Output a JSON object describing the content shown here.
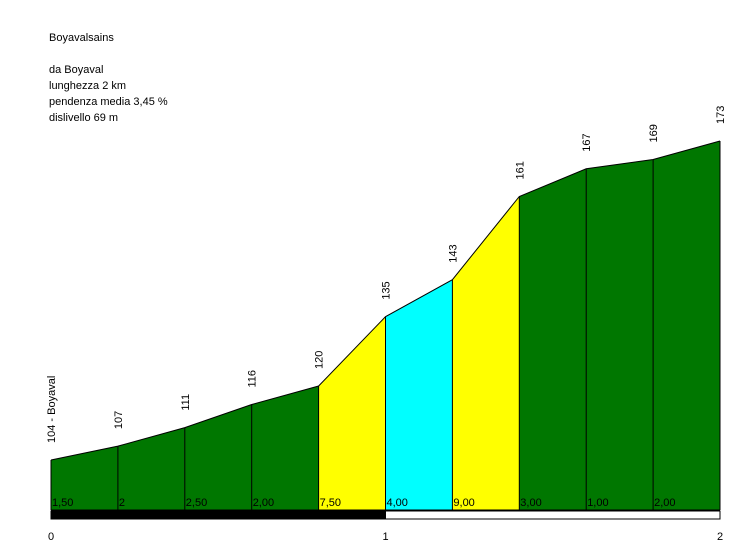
{
  "info": {
    "title": "Boyavalsains",
    "start": "da Boyaval",
    "length": "lunghezza 2 km",
    "gradient": "pendenza media 3,45 %",
    "elevation_gain": "dislivello 69 m"
  },
  "chart_data": {
    "type": "area",
    "title": "Boyavalsains",
    "xlabel": "",
    "ylabel": "",
    "x": [
      0,
      0.2,
      0.4,
      0.6,
      0.8,
      1.0,
      1.2,
      1.4,
      1.6,
      1.8,
      2.0
    ],
    "altitudes": [
      104,
      107,
      111,
      116,
      120,
      135,
      143,
      161,
      167,
      169,
      173
    ],
    "altitude_labels": [
      "104 - Boyaval",
      "107",
      "111",
      "116",
      "120",
      "135",
      "143",
      "161",
      "167",
      "169",
      "173"
    ],
    "segment_gradients": [
      "1,50",
      "2",
      "2,50",
      "2,00",
      "7,50",
      "4,00",
      "9,00",
      "3,00",
      "1,00",
      "2,00"
    ],
    "segment_colors": [
      "#007700",
      "#007700",
      "#007700",
      "#007700",
      "#ffff00",
      "#00ffff",
      "#ffff00",
      "#007700",
      "#007700",
      "#007700"
    ],
    "km_ticks": [
      "0",
      "1",
      "2"
    ],
    "xlim": [
      0,
      2
    ],
    "grid": false,
    "legend": "none"
  }
}
